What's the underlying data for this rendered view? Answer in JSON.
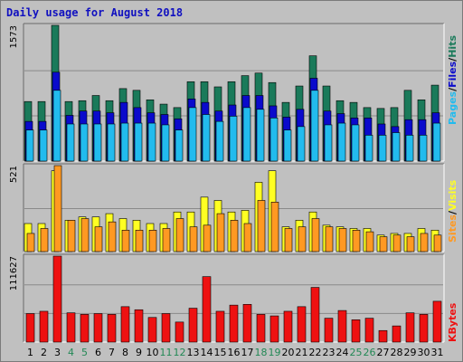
{
  "chart_data": [
    {
      "type": "bar",
      "title": "Daily usage for August 2018",
      "categories": [
        "1",
        "2",
        "3",
        "4",
        "5",
        "6",
        "7",
        "8",
        "9",
        "10",
        "11",
        "12",
        "13",
        "14",
        "15",
        "16",
        "17",
        "18",
        "19",
        "20",
        "21",
        "22",
        "23",
        "24",
        "25",
        "26",
        "27",
        "28",
        "29",
        "30",
        "31"
      ],
      "weekend_days": [
        "4",
        "5",
        "11",
        "12",
        "18",
        "19",
        "25",
        "26"
      ],
      "y_tick_label": "1573",
      "ylim": [
        0,
        1573
      ],
      "legend": [
        "Pages",
        "Files",
        "Hits"
      ],
      "series": [
        {
          "name": "Hits",
          "color": "#1a7a5a",
          "values": [
            690,
            690,
            1573,
            690,
            700,
            760,
            700,
            840,
            820,
            710,
            660,
            620,
            920,
            920,
            860,
            920,
            990,
            1020,
            910,
            680,
            870,
            1220,
            870,
            700,
            680,
            620,
            610,
            620,
            820,
            710,
            880
          ]
        },
        {
          "name": "Files",
          "color": "#0a0acc",
          "values": [
            460,
            460,
            1030,
            530,
            580,
            580,
            560,
            680,
            620,
            560,
            540,
            490,
            720,
            680,
            580,
            650,
            760,
            760,
            640,
            510,
            600,
            960,
            580,
            550,
            500,
            500,
            430,
            400,
            480,
            480,
            560
          ]
        },
        {
          "name": "Pages",
          "color": "#22bbee",
          "values": [
            360,
            360,
            820,
            430,
            430,
            430,
            430,
            440,
            440,
            440,
            420,
            360,
            620,
            540,
            460,
            520,
            620,
            600,
            500,
            360,
            400,
            820,
            420,
            440,
            420,
            300,
            300,
            330,
            300,
            300,
            440
          ]
        }
      ]
    },
    {
      "type": "bar",
      "categories": [
        "1",
        "2",
        "3",
        "4",
        "5",
        "6",
        "7",
        "8",
        "9",
        "10",
        "11",
        "12",
        "13",
        "14",
        "15",
        "16",
        "17",
        "18",
        "19",
        "20",
        "21",
        "22",
        "23",
        "24",
        "25",
        "26",
        "27",
        "28",
        "29",
        "30",
        "31"
      ],
      "y_tick_label": "521",
      "ylim": [
        0,
        521
      ],
      "legend": [
        "Sites",
        "Visits"
      ],
      "series": [
        {
          "name": "Visits",
          "color": "#ffff22",
          "values": [
            170,
            170,
            490,
            190,
            210,
            210,
            230,
            200,
            190,
            170,
            170,
            240,
            240,
            330,
            310,
            240,
            250,
            420,
            490,
            150,
            190,
            240,
            160,
            150,
            140,
            140,
            100,
            110,
            110,
            140,
            130
          ]
        },
        {
          "name": "Sites",
          "color": "#ff9922",
          "values": [
            110,
            140,
            521,
            190,
            200,
            150,
            180,
            130,
            130,
            130,
            140,
            200,
            150,
            160,
            230,
            190,
            170,
            310,
            300,
            140,
            150,
            200,
            150,
            140,
            130,
            120,
            90,
            100,
            90,
            110,
            100
          ]
        }
      ]
    },
    {
      "type": "bar",
      "categories": [
        "1",
        "2",
        "3",
        "4",
        "5",
        "6",
        "7",
        "8",
        "9",
        "10",
        "11",
        "12",
        "13",
        "14",
        "15",
        "16",
        "17",
        "18",
        "19",
        "20",
        "21",
        "22",
        "23",
        "24",
        "25",
        "26",
        "27",
        "28",
        "29",
        "30",
        "31"
      ],
      "y_tick_label": "111627",
      "ylim": [
        0,
        111627
      ],
      "legend": [
        "KBytes"
      ],
      "series": [
        {
          "name": "KBytes",
          "color": "#ee1111",
          "values": [
            37000,
            40000,
            111627,
            38000,
            36000,
            37000,
            36000,
            46000,
            42000,
            32000,
            37000,
            26000,
            44000,
            85000,
            40000,
            48000,
            49000,
            36000,
            34000,
            40000,
            46000,
            71000,
            31000,
            41000,
            29000,
            31000,
            15000,
            21000,
            38000,
            36000,
            53000
          ]
        }
      ]
    }
  ],
  "x_axis_labels": [
    "1",
    "2",
    "3",
    "4",
    "5",
    "6",
    "7",
    "8",
    "9",
    "10",
    "11",
    "12",
    "13",
    "14",
    "15",
    "16",
    "17",
    "18",
    "19",
    "20",
    "21",
    "22",
    "23",
    "24",
    "25",
    "26",
    "27",
    "28",
    "29",
    "30",
    "31"
  ],
  "legend_labels": {
    "panel1": [
      "Pages",
      "/",
      "Files",
      "/",
      "Hits"
    ],
    "panel2": [
      "Sites",
      "/",
      "Visits"
    ],
    "panel3": [
      "KBytes"
    ]
  },
  "colors": {
    "background": "#c0c0c0",
    "plot_bg": "#c0c0c0",
    "title": "#1010c0",
    "weekday_label": "#000000",
    "weekend_label": "#228855",
    "legend_pages": "#22bbee",
    "legend_files": "#0a0acc",
    "legend_hits": "#1a7a5a",
    "legend_sites": "#ff9922",
    "legend_visits": "#ffff22",
    "legend_kbytes": "#ee1111",
    "legend_slash": "#000000"
  }
}
